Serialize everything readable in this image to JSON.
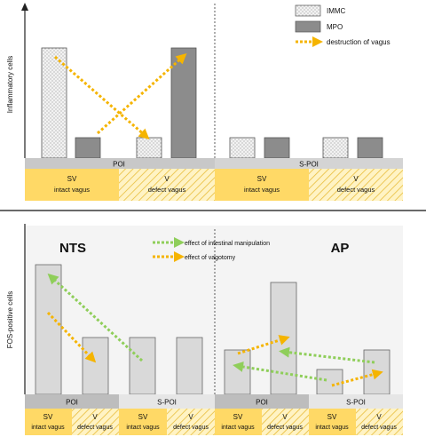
{
  "colors": {
    "grey_band": "#c8c8c8",
    "grey_band_light": "#e6e6e6",
    "grey_band_dark": "#bdbdbd",
    "yellow": "#ffd966",
    "yellow_hatch_bg": "#fff0b8",
    "yellow_hatch_line": "#e8b930",
    "orange_arrow": "#f5b400",
    "green_arrow": "#8fce5a",
    "bar_fill": "#d9d9d9",
    "mpo_fill": "#8c8c8c",
    "panel_bg": "#f4f4f4"
  },
  "top": {
    "ylabel": "Inflammatory cells",
    "legend": {
      "immc": "IMMC",
      "mpo": "MPO",
      "vagus": "destruction of vagus"
    },
    "groups": {
      "poi": "POI",
      "spoi": "S-POI"
    },
    "sub": {
      "sv": "SV",
      "intact": "intact vagus",
      "v": "V",
      "defect": "defect vagus"
    }
  },
  "bottom": {
    "ylabel": "FOS-positive cells",
    "nts": "NTS",
    "ap": "AP",
    "legend": {
      "manipulation": "effect of intestinal manipulation",
      "vagotomy": "effect of vagotomy"
    },
    "groups": {
      "poi": "POI",
      "spoi": "S-POI"
    },
    "sub": {
      "sv": "SV",
      "intact": "intact vagus",
      "v": "V",
      "defect": "defect vagus"
    }
  },
  "chart_data": [
    {
      "type": "bar",
      "ylabel": "Inflammatory cells",
      "categories": [
        "POI SV",
        "POI V",
        "S-POI SV",
        "S-POI V"
      ],
      "series": [
        {
          "name": "IMMC",
          "values": [
            4.5,
            1.0,
            1.0,
            1.0
          ]
        },
        {
          "name": "MPO",
          "values": [
            1.0,
            4.5,
            1.0,
            1.0
          ]
        }
      ]
    },
    {
      "type": "bar",
      "ylabel": "FOS-positive cells",
      "panels": [
        {
          "title": "NTS",
          "categories": [
            "POI SV",
            "POI V",
            "S-POI SV",
            "S-POI V"
          ],
          "values": [
            5.6,
            3.0,
            3.0,
            3.0
          ]
        },
        {
          "title": "AP",
          "categories": [
            "POI SV",
            "POI V",
            "S-POI SV",
            "S-POI V"
          ],
          "values": [
            2.3,
            4.0,
            1.3,
            2.3
          ]
        }
      ]
    }
  ]
}
